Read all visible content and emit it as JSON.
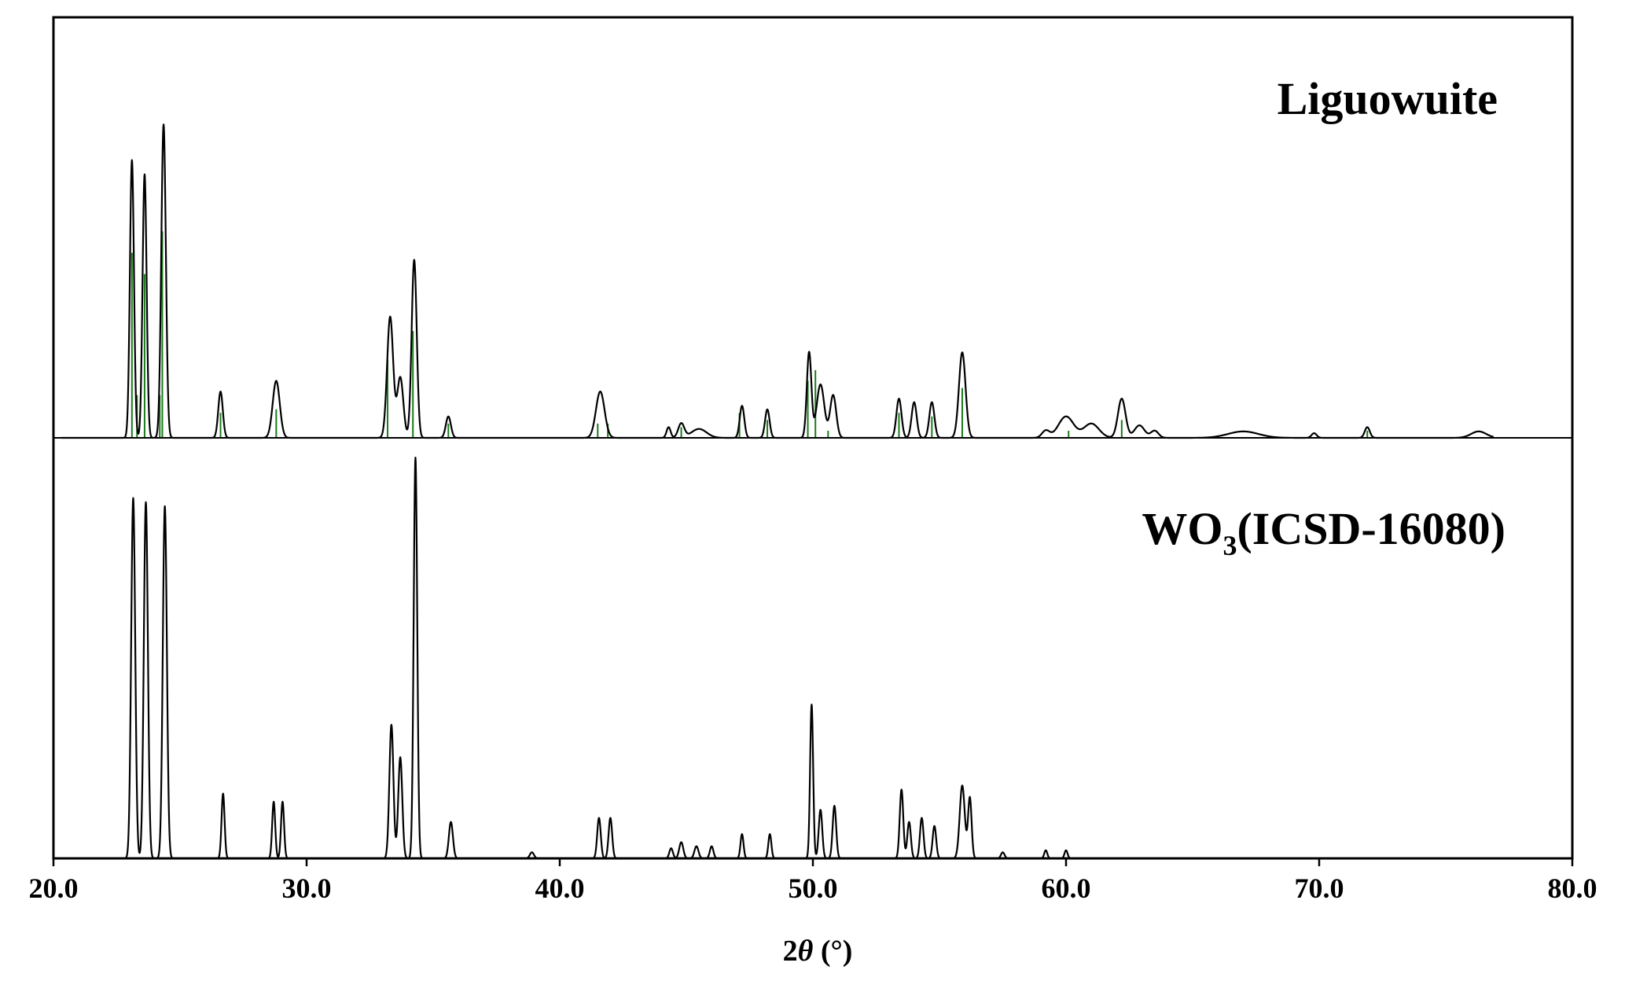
{
  "chart_data": {
    "type": "line",
    "xlabel_prefix": "2",
    "xlabel_symbol": "θ",
    "xlabel_unit": " (°)",
    "xlim": [
      20.0,
      80.0
    ],
    "xticks": [
      20.0,
      30.0,
      40.0,
      50.0,
      60.0,
      70.0,
      80.0
    ],
    "xtick_labels": [
      "20.0",
      "30.0",
      "40.0",
      "50.0",
      "60.0",
      "70.0",
      "80.0"
    ],
    "grid": false,
    "colors": {
      "profile": "#000000",
      "reference_sticks": "#1a7a1a",
      "frame": "#000000"
    },
    "panels": [
      {
        "label": "Liguowuite",
        "series_type": "line",
        "ylim": [
          0,
          1.0
        ],
        "peaks": [
          [
            23.1,
            0.78,
            0.08
          ],
          [
            23.6,
            0.74,
            0.08
          ],
          [
            24.35,
            0.88,
            0.09
          ],
          [
            26.6,
            0.13,
            0.09
          ],
          [
            28.8,
            0.16,
            0.14
          ],
          [
            33.3,
            0.34,
            0.12
          ],
          [
            33.7,
            0.17,
            0.12
          ],
          [
            34.25,
            0.5,
            0.1
          ],
          [
            35.6,
            0.06,
            0.1
          ],
          [
            41.6,
            0.13,
            0.17
          ],
          [
            44.3,
            0.03,
            0.08
          ],
          [
            44.8,
            0.04,
            0.12
          ],
          [
            45.5,
            0.025,
            0.3
          ],
          [
            47.2,
            0.09,
            0.09
          ],
          [
            48.2,
            0.08,
            0.09
          ],
          [
            49.85,
            0.24,
            0.09
          ],
          [
            50.3,
            0.15,
            0.15
          ],
          [
            50.8,
            0.12,
            0.12
          ],
          [
            53.4,
            0.11,
            0.1
          ],
          [
            54.0,
            0.1,
            0.1
          ],
          [
            54.7,
            0.1,
            0.1
          ],
          [
            55.9,
            0.24,
            0.13
          ],
          [
            59.2,
            0.02,
            0.15
          ],
          [
            60.0,
            0.06,
            0.3
          ],
          [
            61.0,
            0.04,
            0.3
          ],
          [
            62.2,
            0.11,
            0.15
          ],
          [
            62.9,
            0.035,
            0.2
          ],
          [
            63.5,
            0.02,
            0.15
          ],
          [
            67.0,
            0.018,
            0.6
          ],
          [
            69.8,
            0.013,
            0.1
          ],
          [
            71.9,
            0.03,
            0.1
          ],
          [
            76.3,
            0.018,
            0.3
          ]
        ],
        "sticks": [
          [
            23.1,
            0.52
          ],
          [
            23.3,
            0.12
          ],
          [
            23.6,
            0.46
          ],
          [
            24.2,
            0.12
          ],
          [
            24.3,
            0.58
          ],
          [
            26.6,
            0.07
          ],
          [
            28.8,
            0.08
          ],
          [
            33.2,
            0.22
          ],
          [
            34.2,
            0.3
          ],
          [
            35.6,
            0.04
          ],
          [
            41.5,
            0.04
          ],
          [
            41.9,
            0.04
          ],
          [
            44.8,
            0.03
          ],
          [
            47.1,
            0.07
          ],
          [
            48.2,
            0.05
          ],
          [
            49.8,
            0.16
          ],
          [
            50.1,
            0.19
          ],
          [
            50.6,
            0.02
          ],
          [
            53.4,
            0.07
          ],
          [
            54.7,
            0.06
          ],
          [
            55.9,
            0.14
          ],
          [
            60.1,
            0.02
          ],
          [
            62.2,
            0.05
          ],
          [
            71.9,
            0.02
          ]
        ]
      },
      {
        "label": "WO",
        "label_subscript": "3",
        "label_suffix": "(ICSD-16080)",
        "series_type": "line",
        "ylim": [
          0,
          1.0
        ],
        "peaks": [
          [
            23.15,
            0.89,
            0.08
          ],
          [
            23.65,
            0.88,
            0.08
          ],
          [
            24.4,
            0.87,
            0.08
          ],
          [
            26.7,
            0.16,
            0.06
          ],
          [
            28.7,
            0.14,
            0.06
          ],
          [
            29.05,
            0.14,
            0.06
          ],
          [
            33.35,
            0.33,
            0.08
          ],
          [
            33.7,
            0.25,
            0.08
          ],
          [
            34.3,
            0.99,
            0.07
          ],
          [
            35.7,
            0.09,
            0.08
          ],
          [
            38.9,
            0.015,
            0.08
          ],
          [
            41.55,
            0.1,
            0.07
          ],
          [
            42.0,
            0.1,
            0.07
          ],
          [
            44.4,
            0.025,
            0.07
          ],
          [
            44.8,
            0.04,
            0.08
          ],
          [
            45.4,
            0.03,
            0.08
          ],
          [
            46.0,
            0.03,
            0.07
          ],
          [
            47.2,
            0.06,
            0.06
          ],
          [
            48.3,
            0.06,
            0.06
          ],
          [
            49.95,
            0.38,
            0.06
          ],
          [
            50.3,
            0.12,
            0.07
          ],
          [
            50.85,
            0.13,
            0.07
          ],
          [
            53.5,
            0.17,
            0.07
          ],
          [
            53.8,
            0.09,
            0.07
          ],
          [
            54.3,
            0.1,
            0.07
          ],
          [
            54.8,
            0.08,
            0.07
          ],
          [
            55.9,
            0.18,
            0.1
          ],
          [
            56.2,
            0.15,
            0.07
          ],
          [
            57.5,
            0.015,
            0.07
          ],
          [
            59.2,
            0.02,
            0.06
          ],
          [
            60.0,
            0.02,
            0.06
          ]
        ]
      }
    ]
  }
}
